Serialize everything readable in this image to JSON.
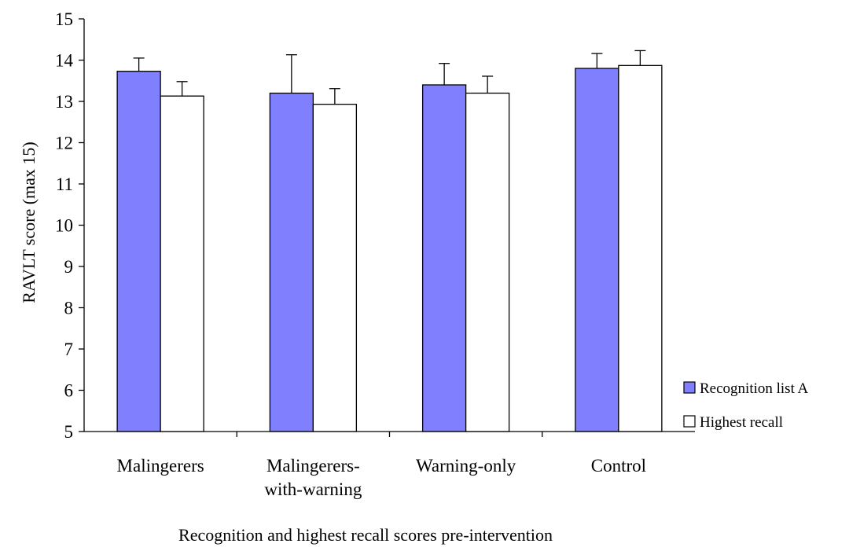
{
  "chart_data": {
    "type": "bar",
    "title": "",
    "xlabel": "Recognition and highest recall scores pre-intervention",
    "ylabel": "RAVLT score (max 15)",
    "ylim": [
      5,
      15
    ],
    "yticks": [
      "5",
      "6",
      "7",
      "8",
      "9",
      "10",
      "11",
      "12",
      "13",
      "14",
      "15"
    ],
    "categories": [
      [
        "Malingerers"
      ],
      [
        "Malingerers-",
        "with-warning"
      ],
      [
        "Warning-only"
      ],
      [
        "Control"
      ]
    ],
    "series": [
      {
        "name": "Recognition list A",
        "color": "#8080ff",
        "values": [
          13.73,
          13.2,
          13.4,
          13.8
        ],
        "error": [
          0.32,
          0.93,
          0.52,
          0.36
        ]
      },
      {
        "name": "Highest recall",
        "color": "#ffffff",
        "values": [
          13.13,
          12.93,
          13.2,
          13.87
        ],
        "error": [
          0.35,
          0.38,
          0.41,
          0.36
        ]
      }
    ],
    "grid": false,
    "legend_position": "right"
  }
}
